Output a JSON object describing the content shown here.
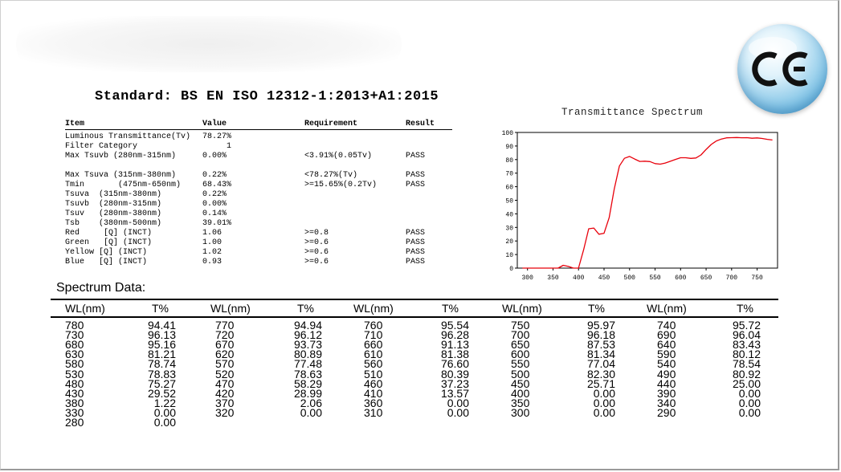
{
  "standard_title": "Standard: BS EN ISO 12312-1:2013+A1:2015",
  "ce_mark": "CE",
  "spec_table": {
    "headers": [
      "Item",
      "Value",
      "Requirement",
      "Result"
    ],
    "rows": [
      {
        "item": "Luminous Transmittance(Tv)",
        "value": "78.27%",
        "requirement": "",
        "result": ""
      },
      {
        "item": "Filter Category",
        "value": "     1",
        "requirement": "",
        "result": ""
      },
      {
        "item": "Max Tsuvb (280nm-315nm)",
        "value": "0.00%",
        "requirement": "<3.91%(0.05Tv)",
        "result": "PASS"
      },
      {
        "item": "",
        "value": "",
        "requirement": "",
        "result": ""
      },
      {
        "item": "Max Tsuva (315nm-380nm)",
        "value": "0.22%",
        "requirement": "<78.27%(Tv)",
        "result": "PASS"
      },
      {
        "item": "Tmin       (475nm-650nm)",
        "value": "68.43%",
        "requirement": ">=15.65%(0.2Tv)",
        "result": "PASS"
      },
      {
        "item": "Tsuva  (315nm-380nm)",
        "value": "0.22%",
        "requirement": "",
        "result": ""
      },
      {
        "item": "Tsuvb  (280nm-315nm)",
        "value": "0.00%",
        "requirement": "",
        "result": ""
      },
      {
        "item": "Tsuv   (280nm-380nm)",
        "value": "0.14%",
        "requirement": "",
        "result": ""
      },
      {
        "item": "Tsb    (380nm-500nm)",
        "value": "39.01%",
        "requirement": "",
        "result": ""
      },
      {
        "item": "Red     [Q] (INCT)",
        "value": "1.06",
        "requirement": ">=0.8",
        "result": "PASS"
      },
      {
        "item": "Green   [Q] (INCT)",
        "value": "1.00",
        "requirement": ">=0.6",
        "result": "PASS"
      },
      {
        "item": "Yellow [Q] (INCT)",
        "value": "1.02",
        "requirement": ">=0.6",
        "result": "PASS"
      },
      {
        "item": "Blue   [Q] (INCT)",
        "value": "0.93",
        "requirement": ">=0.6",
        "result": "PASS"
      }
    ]
  },
  "chart_data": {
    "type": "line",
    "title": "Transmittance Spectrum",
    "xlabel": "",
    "ylabel": "",
    "xlim": [
      280,
      790
    ],
    "ylim": [
      0,
      100
    ],
    "x_ticks": [
      300,
      350,
      400,
      450,
      500,
      550,
      600,
      650,
      700,
      750
    ],
    "y_ticks": [
      0,
      10,
      20,
      30,
      40,
      50,
      60,
      70,
      80,
      90,
      100
    ],
    "grid": false,
    "line_color": "#e8000b",
    "series": [
      {
        "x": [
          290,
          300,
          310,
          320,
          330,
          340,
          350,
          360,
          370,
          380,
          390,
          400,
          410,
          420,
          430,
          440,
          450,
          460,
          470,
          480,
          490,
          500,
          510,
          520,
          530,
          540,
          550,
          560,
          570,
          580,
          590,
          600,
          610,
          620,
          630,
          640,
          650,
          660,
          670,
          680,
          690,
          700,
          710,
          720,
          730,
          740,
          750,
          760,
          770,
          780
        ],
        "y": [
          0.0,
          0.0,
          0.0,
          0.0,
          0.0,
          0.0,
          0.0,
          0.0,
          2.06,
          1.22,
          0.0,
          0.0,
          13.57,
          28.99,
          29.52,
          25.0,
          25.71,
          37.23,
          58.29,
          75.27,
          80.92,
          82.3,
          80.39,
          78.63,
          78.83,
          78.54,
          77.04,
          76.6,
          77.48,
          78.74,
          80.12,
          81.34,
          81.38,
          80.89,
          81.21,
          83.43,
          87.53,
          91.13,
          93.73,
          95.16,
          96.04,
          96.18,
          96.28,
          96.12,
          96.13,
          95.72,
          95.97,
          95.54,
          94.94,
          94.41
        ]
      }
    ]
  },
  "spectrum_data": {
    "title": "Spectrum Data:",
    "headers": [
      "WL(nm)",
      "T%",
      "WL(nm)",
      "T%",
      "WL(nm)",
      "T%",
      "WL(nm)",
      "T%",
      "WL(nm)",
      "T%"
    ],
    "rows": [
      [
        "780",
        "94.41",
        "770",
        "94.94",
        "760",
        "95.54",
        "750",
        "95.97",
        "740",
        "95.72"
      ],
      [
        "730",
        "96.13",
        "720",
        "96.12",
        "710",
        "96.28",
        "700",
        "96.18",
        "690",
        "96.04"
      ],
      [
        "680",
        "95.16",
        "670",
        "93.73",
        "660",
        "91.13",
        "650",
        "87.53",
        "640",
        "83.43"
      ],
      [
        "630",
        "81.21",
        "620",
        "80.89",
        "610",
        "81.38",
        "600",
        "81.34",
        "590",
        "80.12"
      ],
      [
        "580",
        "78.74",
        "570",
        "77.48",
        "560",
        "76.60",
        "550",
        "77.04",
        "540",
        "78.54"
      ],
      [
        "530",
        "78.83",
        "520",
        "78.63",
        "510",
        "80.39",
        "500",
        "82.30",
        "490",
        "80.92"
      ],
      [
        "480",
        "75.27",
        "470",
        "58.29",
        "460",
        "37.23",
        "450",
        "25.71",
        "440",
        "25.00"
      ],
      [
        "430",
        "29.52",
        "420",
        "28.99",
        "410",
        "13.57",
        "400",
        "0.00",
        "390",
        "0.00"
      ],
      [
        "380",
        "1.22",
        "370",
        "2.06",
        "360",
        "0.00",
        "350",
        "0.00",
        "340",
        "0.00"
      ],
      [
        "330",
        "0.00",
        "320",
        "0.00",
        "310",
        "0.00",
        "300",
        "0.00",
        "290",
        "0.00"
      ],
      [
        "280",
        "0.00",
        "",
        "",
        "",
        "",
        "",
        "",
        "",
        ""
      ]
    ]
  }
}
